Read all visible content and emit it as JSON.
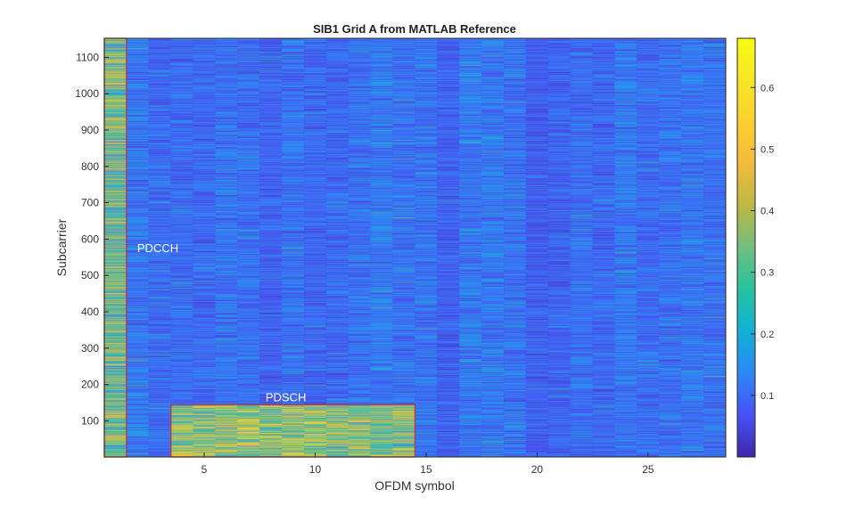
{
  "chart_data": {
    "type": "heatmap",
    "title": "SIB1 Grid A from MATLAB Reference",
    "xlabel": "OFDM symbol",
    "ylabel": "Subcarrier",
    "x_range": [
      1,
      28
    ],
    "y_range": [
      1,
      1152
    ],
    "x_ticks": [
      5,
      10,
      15,
      20,
      25
    ],
    "y_ticks": [
      100,
      200,
      300,
      400,
      500,
      600,
      700,
      800,
      900,
      1000,
      1100
    ],
    "colormap": "parula",
    "clim": [
      0,
      0.68
    ],
    "colorbar_ticks": [
      0.1,
      0.2,
      0.3,
      0.4,
      0.5,
      0.6
    ],
    "grid": false,
    "regions": [
      {
        "label": "PDCCH",
        "symbols": [
          1,
          1
        ],
        "subcarriers": [
          1,
          1152
        ],
        "typical_value": 0.32,
        "outline_color": "#c8303c"
      },
      {
        "label": "PDSCH",
        "symbols": [
          4,
          14
        ],
        "subcarriers": [
          1,
          144
        ],
        "typical_value": 0.36,
        "outline_color": "#c8303c"
      }
    ],
    "background_typical_value": 0.1
  }
}
